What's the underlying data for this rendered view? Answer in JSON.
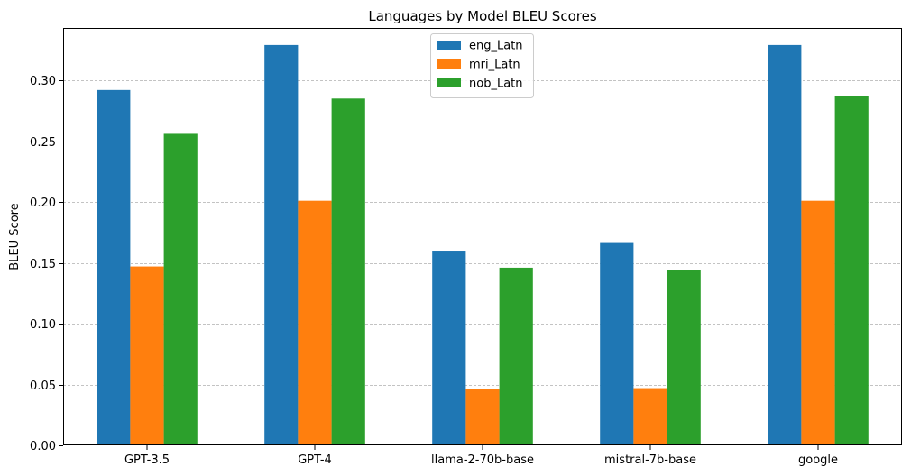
{
  "chart_data": {
    "type": "bar",
    "title": "Languages by Model BLEU Scores",
    "xlabel": "",
    "ylabel": "BLEU Score",
    "categories": [
      "GPT-3.5",
      "GPT-4",
      "llama-2-70b-base",
      "mistral-7b-base",
      "google"
    ],
    "series": [
      {
        "name": "eng_Latn",
        "color": "#1f77b4",
        "values": [
          0.292,
          0.329,
          0.16,
          0.167,
          0.329
        ]
      },
      {
        "name": "mri_Latn",
        "color": "#ff7f0e",
        "values": [
          0.147,
          0.201,
          0.046,
          0.047,
          0.201
        ]
      },
      {
        "name": "nob_Latn",
        "color": "#2ca02c",
        "values": [
          0.256,
          0.285,
          0.146,
          0.144,
          0.287
        ]
      }
    ],
    "ylim": [
      0,
      0.343
    ],
    "yticks": [
      0.0,
      0.05,
      0.1,
      0.15,
      0.2,
      0.25,
      0.3
    ],
    "ytick_labels": [
      "0.00",
      "0.05",
      "0.10",
      "0.15",
      "0.20",
      "0.25",
      "0.30"
    ],
    "grid": "y dashed",
    "legend_position": "top-center"
  }
}
